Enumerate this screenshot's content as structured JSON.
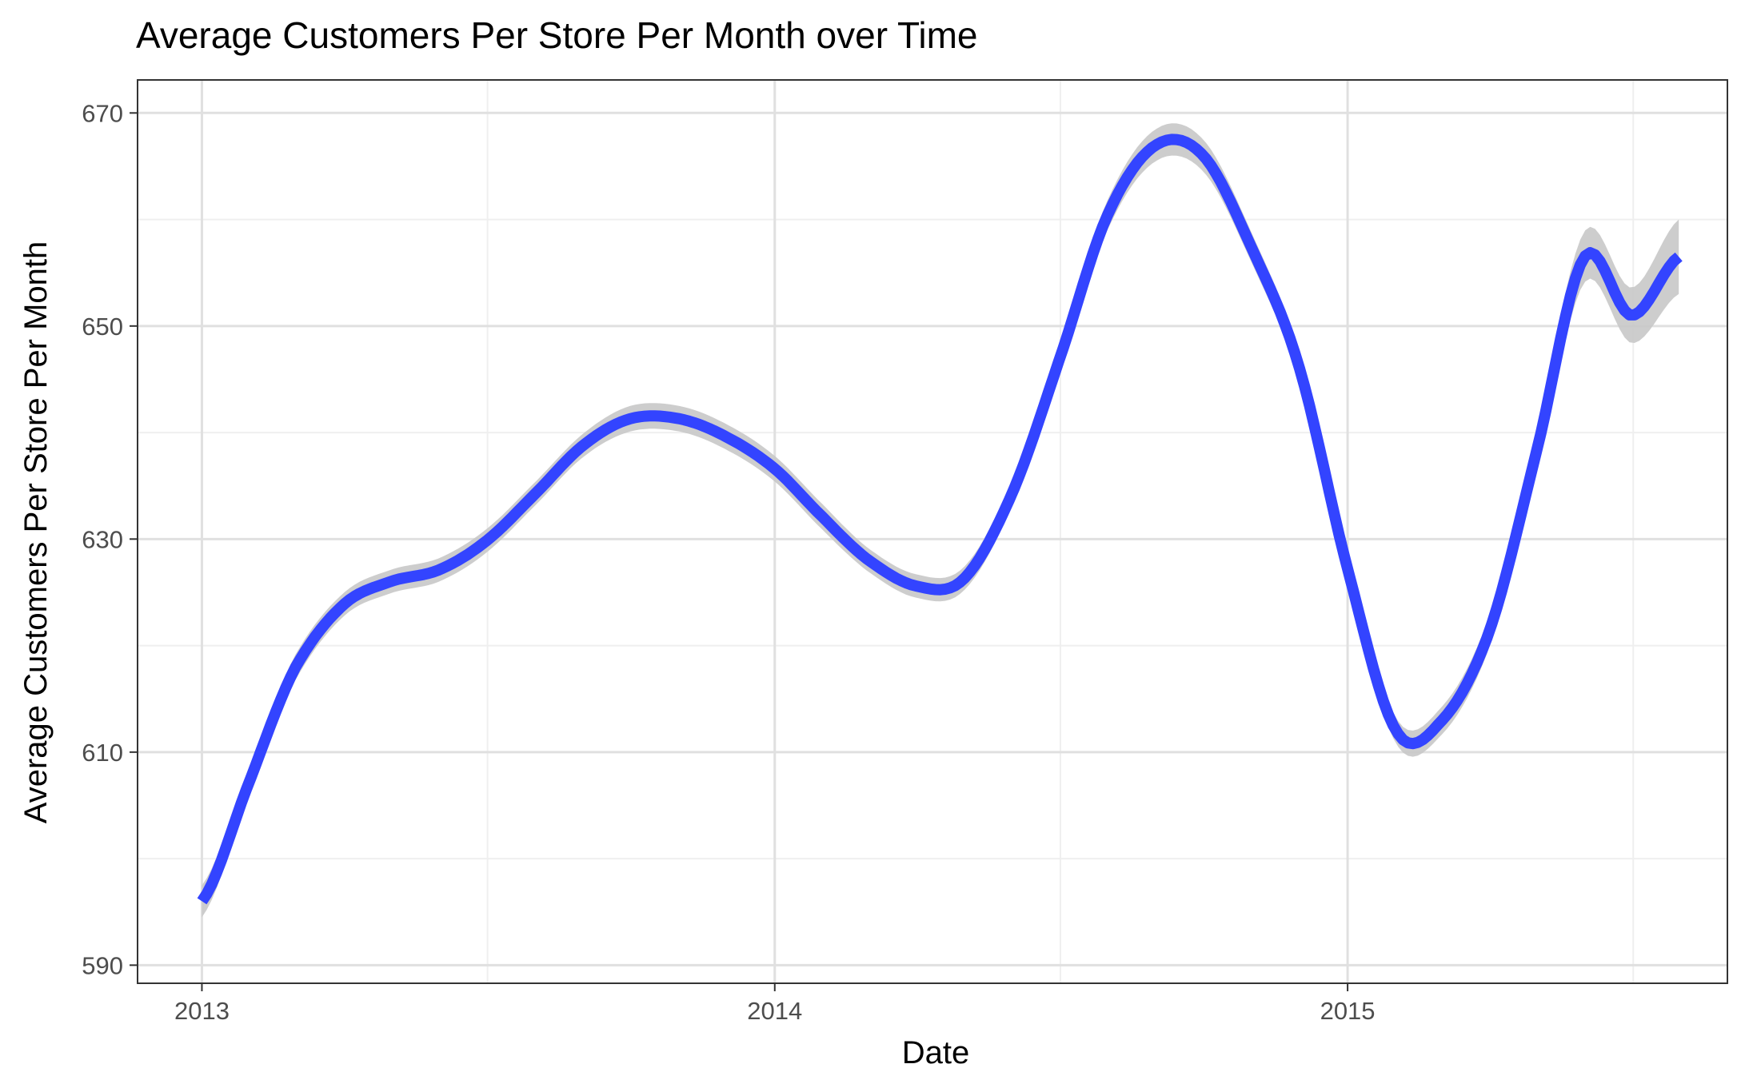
{
  "chart_data": {
    "type": "line",
    "title": "Average Customers Per Store Per Month over Time",
    "xlabel": "Date",
    "ylabel": "Average Customers Per Store Per Month",
    "x_ticks": [
      "2013",
      "2014",
      "2015"
    ],
    "y_ticks": [
      "590",
      "610",
      "630",
      "650",
      "670"
    ],
    "xlim": [
      "2012-11-21",
      "2015-08-31"
    ],
    "ylim": [
      588.3,
      673.1
    ],
    "grid": true,
    "legend": "none",
    "colors": {
      "line": "#3344ff",
      "ribbon": "#c8c8c8",
      "grid_major": "#e0e0e0",
      "grid_minor": "#efefef",
      "panel_border": "#333333"
    },
    "series": [
      {
        "x": [
          "2013-01-01",
          "2013-02-01",
          "2013-03-01",
          "2013-04-01",
          "2013-05-01",
          "2013-06-01",
          "2013-07-01",
          "2013-08-01",
          "2013-09-01",
          "2013-10-01",
          "2013-11-01",
          "2013-12-01",
          "2014-01-01",
          "2014-02-01",
          "2014-03-01",
          "2014-04-01",
          "2014-05-01",
          "2014-06-01",
          "2014-07-01",
          "2014-08-01",
          "2014-09-01",
          "2014-10-01",
          "2014-11-01",
          "2014-12-01",
          "2015-01-01",
          "2015-02-01",
          "2015-03-01",
          "2015-04-01",
          "2015-05-01",
          "2015-06-01",
          "2015-07-01",
          "2015-07-31"
        ],
        "y": [
          596.0,
          607.5,
          617.8,
          623.8,
          626.0,
          627.1,
          629.8,
          634.2,
          638.8,
          641.3,
          641.3,
          639.6,
          636.6,
          632.0,
          628.1,
          625.6,
          626.2,
          634.2,
          646.7,
          660.4,
          667.0,
          666.0,
          657.3,
          646.2,
          627.2,
          612.0,
          612.8,
          621.2,
          638.0,
          656.5,
          651.0,
          656.5
        ],
        "band": [
          1.5,
          1.3,
          1.2,
          1.1,
          1.1,
          1.1,
          1.1,
          1.1,
          1.1,
          1.2,
          1.2,
          1.2,
          1.2,
          1.2,
          1.1,
          1.1,
          1.1,
          1.2,
          1.3,
          1.4,
          1.5,
          1.5,
          1.4,
          1.3,
          1.2,
          1.2,
          1.3,
          1.5,
          1.9,
          2.4,
          2.6,
          3.5
        ]
      }
    ]
  }
}
